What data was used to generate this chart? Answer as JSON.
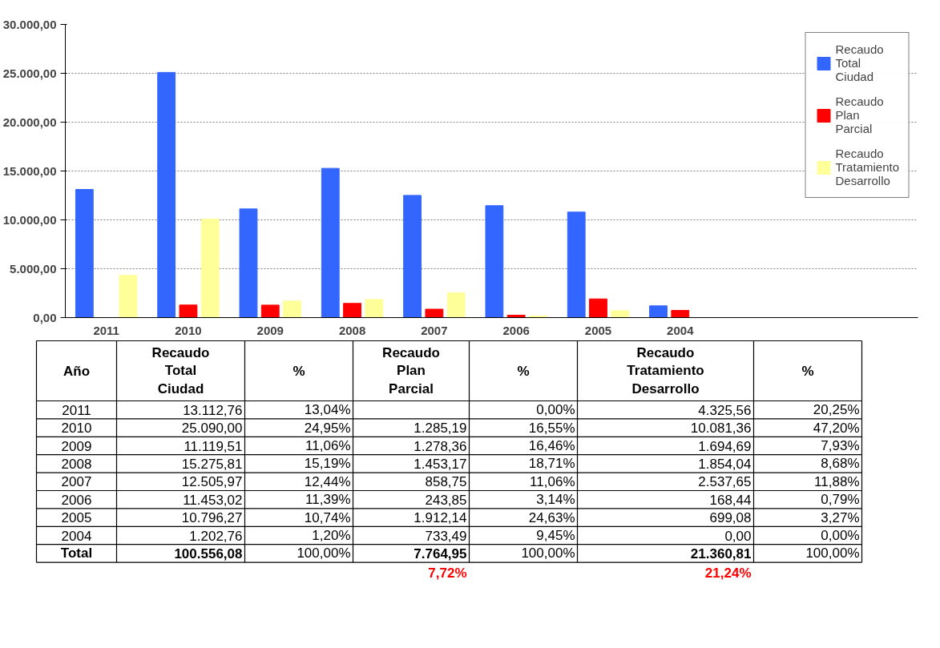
{
  "chart_data": {
    "type": "bar",
    "categories": [
      "2011",
      "2010",
      "2009",
      "2008",
      "2007",
      "2006",
      "2005",
      "2004"
    ],
    "xlabel": "Año",
    "series": [
      {
        "name": "Recaudo Total Ciudad",
        "color": "#3366ff",
        "values": [
          13112.76,
          25090.0,
          11119.51,
          15275.81,
          12505.97,
          11453.02,
          10796.27,
          1202.76
        ]
      },
      {
        "name": "Recaudo Plan Parcial",
        "color": "#ff0000",
        "values": [
          null,
          1285.19,
          1278.36,
          1453.17,
          858.75,
          243.85,
          1912.14,
          733.49
        ]
      },
      {
        "name": "Recaudo Tratamiento Desarrollo",
        "color": "#ffff99",
        "values": [
          4325.56,
          10081.36,
          1694.69,
          1854.04,
          2537.65,
          168.44,
          699.08,
          0.0
        ]
      }
    ],
    "ylim": [
      0,
      30000
    ],
    "yticks": [
      {
        "value": 0,
        "label": "0,00"
      },
      {
        "value": 5000,
        "label": "5.000,00"
      },
      {
        "value": 10000,
        "label": "10.000,00"
      },
      {
        "value": 15000,
        "label": "15.000,00"
      },
      {
        "value": 20000,
        "label": "20.000,00"
      },
      {
        "value": 25000,
        "label": "25.000,00"
      },
      {
        "value": 30000,
        "label": "30.000,00"
      }
    ],
    "grid": "y",
    "legend": "right",
    "annotations": [
      "%",
      "%",
      "%",
      "13.112,76",
      "13,04%",
      "0,00%",
      "4.325,56",
      "20,25%",
      "25.090,00",
      "24,95%",
      "1.285,19",
      "16,55%",
      "10.081,36",
      "47,20%",
      "11.119,51",
      "11,06%",
      "1.278,36",
      "16,46%",
      "1.694,69",
      "7,93%",
      "15.275,81",
      "15,19%",
      "1.453,17",
      "18,71%",
      "1.854,04",
      "8,68%",
      "12.505,97",
      "12,44%",
      "858,75",
      "11,06%",
      "2.537,65",
      "11,88%",
      "11.453,02",
      "11,39%",
      "243,85",
      "3,14%",
      "168,44",
      "0,79%",
      "10.796,27",
      "10,74%",
      "1.912,14",
      "24,63%",
      "699,08",
      "3,27%",
      "1.202,76",
      "1,20%",
      "733,49",
      "9,45%",
      "0,00",
      "0,00%",
      "Total",
      "100.556,08",
      "100,00%",
      "7.764,95",
      "100,00%",
      "21.360,81",
      "100,00%",
      "7,72%",
      "21,24%"
    ]
  }
}
